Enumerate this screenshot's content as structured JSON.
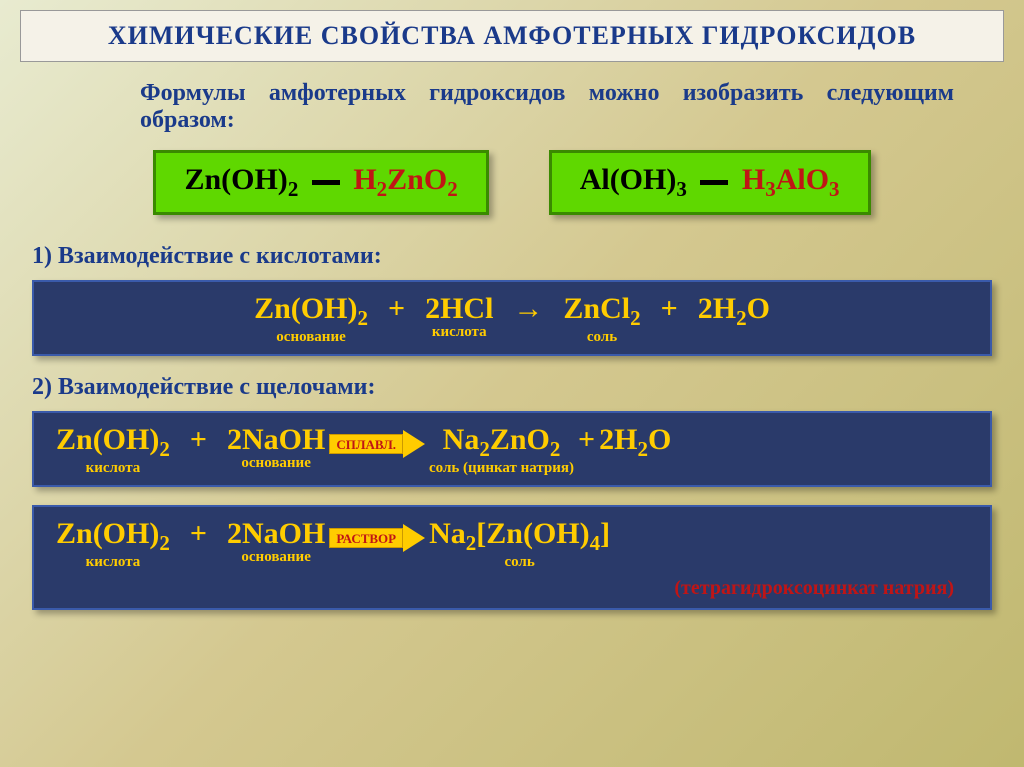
{
  "title": "ХИМИЧЕСКИЕ СВОЙСТВА АМФОТЕРНЫХ ГИДРОКСИДОВ",
  "intro": "Формулы амфотерных гидроксидов можно изобразить следующим образом:",
  "colors": {
    "title_text": "#1a3a8a",
    "green_box_bg": "#5fd800",
    "green_box_border": "#3a8a00",
    "dark_box_bg": "#2a3a6a",
    "red": "#c01515",
    "yellow": "#ffcc00",
    "navy": "#0a2a7a"
  },
  "formula_pair": {
    "left": {
      "base": "Zn(OH)",
      "base_sub": "2",
      "acid_pre": "H",
      "acid_pre_sub": "2",
      "acid": "ZnO",
      "acid_sub": "2"
    },
    "right": {
      "base": "Al(OH)",
      "base_sub": "3",
      "acid_pre": "H",
      "acid_pre_sub": "3",
      "acid": "AlO",
      "acid_sub": "3"
    }
  },
  "sections": [
    {
      "num": "1)",
      "label": "Взаимодействие с кислотами:"
    },
    {
      "num": "2)",
      "label": "Взаимодействие с щелочами:"
    }
  ],
  "roles": {
    "base": "основание",
    "acid": "кислота",
    "salt": "соль",
    "salt_zincate": "соль (цинкат натрия)"
  },
  "eq1": {
    "r1": "Zn(OH)",
    "r1s": "2",
    "r2c": "2",
    "r2": "HCl",
    "p1": "ZnCl",
    "p1s": "2",
    "p2c": "2",
    "p2": "H",
    "p2s": "2",
    "p2t": "O"
  },
  "eq2": {
    "r1": "Zn(OH)",
    "r1s": "2",
    "r2c": "2",
    "r2": "NaOH",
    "arrow_label": "СПЛАВЛ.",
    "p1a": "Na",
    "p1as": "2",
    "p1b": "ZnO",
    "p1bs": "2",
    "p2c": "2",
    "p2": "H",
    "p2s": "2",
    "p2t": "O"
  },
  "eq3": {
    "r1": "Zn(OH)",
    "r1s": "2",
    "r2c": "2",
    "r2": "NaOH",
    "arrow_label": "РАСТВОР",
    "p1a": "Na",
    "p1as": "2",
    "p1b": "[Zn(OH)",
    "p1bs": "4",
    "p1c": "]",
    "footnote": "(тетрагидроксоцинкат натрия)"
  }
}
